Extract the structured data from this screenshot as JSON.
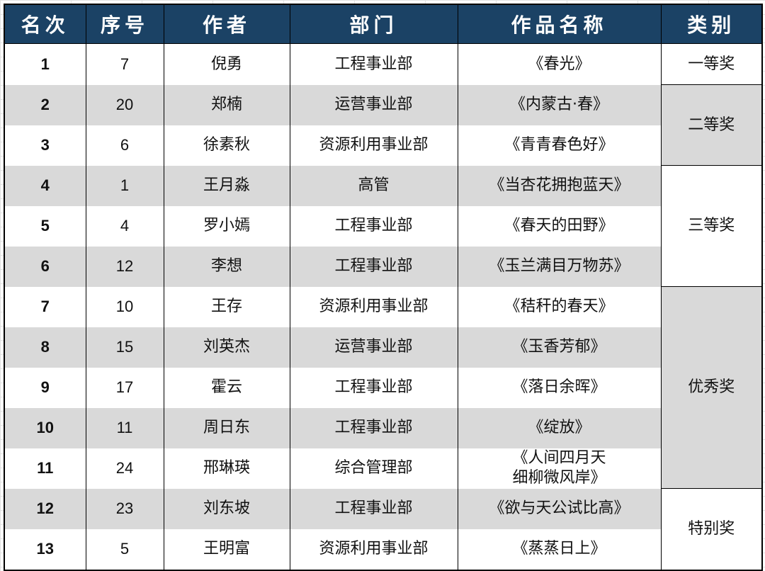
{
  "headers": [
    "名次",
    "序号",
    "作者",
    "部门",
    "作品名称",
    "类别"
  ],
  "rows": [
    {
      "rank": "1",
      "no": "7",
      "author": "倪勇",
      "dept": "工程事业部",
      "work": "《春光》"
    },
    {
      "rank": "2",
      "no": "20",
      "author": "郑楠",
      "dept": "运营事业部",
      "work": "《内蒙古·春》"
    },
    {
      "rank": "3",
      "no": "6",
      "author": "徐素秋",
      "dept": "资源利用事业部",
      "work": "《青青春色好》"
    },
    {
      "rank": "4",
      "no": "1",
      "author": "王月淼",
      "dept": "高管",
      "work": "《当杏花拥抱蓝天》"
    },
    {
      "rank": "5",
      "no": "4",
      "author": "罗小嫣",
      "dept": "工程事业部",
      "work": "《春天的田野》"
    },
    {
      "rank": "6",
      "no": "12",
      "author": "李想",
      "dept": "工程事业部",
      "work": "《玉兰满目万物苏》"
    },
    {
      "rank": "7",
      "no": "10",
      "author": "王存",
      "dept": "资源利用事业部",
      "work": "《秸秆的春天》"
    },
    {
      "rank": "8",
      "no": "15",
      "author": "刘英杰",
      "dept": "运营事业部",
      "work": "《玉香芳郁》"
    },
    {
      "rank": "9",
      "no": "17",
      "author": "霍云",
      "dept": "工程事业部",
      "work": "《落日余晖》"
    },
    {
      "rank": "10",
      "no": "11",
      "author": "周日东",
      "dept": "工程事业部",
      "work": "《绽放》"
    },
    {
      "rank": "11",
      "no": "24",
      "author": "邢琳瑛",
      "dept": "综合管理部",
      "work": "《人间四月天\n细柳微风岸》"
    },
    {
      "rank": "12",
      "no": "23",
      "author": "刘东坡",
      "dept": "工程事业部",
      "work": "《欲与天公试比高》"
    },
    {
      "rank": "13",
      "no": "5",
      "author": "王明富",
      "dept": "资源利用事业部",
      "work": "《蒸蒸日上》"
    }
  ],
  "categories": [
    {
      "label": "一等奖",
      "span": 1,
      "shaded": false
    },
    {
      "label": "二等奖",
      "span": 2,
      "shaded": true
    },
    {
      "label": "三等奖",
      "span": 3,
      "shaded": false
    },
    {
      "label": "优秀奖",
      "span": 5,
      "shaded": true
    },
    {
      "label": "特别奖",
      "span": 2,
      "shaded": false
    }
  ],
  "colors": {
    "header_bg": "#1b4265",
    "row_shade": "#d9d9d9"
  }
}
